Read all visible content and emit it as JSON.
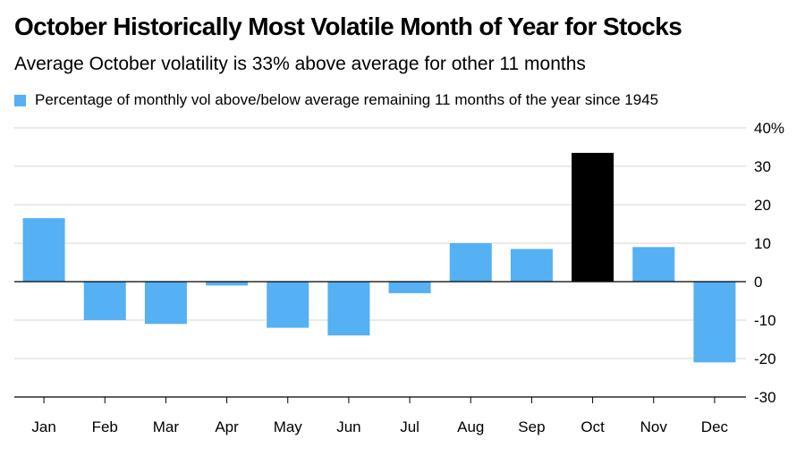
{
  "chart_data": {
    "type": "bar",
    "title": "October Historically Most Volatile Month of Year for Stocks",
    "subtitle": "Average October volatility is 33% above average for other 11 months",
    "legend": {
      "label": "Percentage of monthly vol above/below average remaining 11 months of the year since 1945",
      "placement": "top-left"
    },
    "categories": [
      "Jan",
      "Feb",
      "Mar",
      "Apr",
      "May",
      "Jun",
      "Jul",
      "Aug",
      "Sep",
      "Oct",
      "Nov",
      "Dec"
    ],
    "values": [
      16.5,
      -10,
      -11,
      -1,
      -12,
      -14,
      -3,
      10,
      8.5,
      33.5,
      9,
      -21
    ],
    "highlight_category": "Oct",
    "ylim": [
      -30,
      40
    ],
    "yticks": [
      40,
      30,
      20,
      10,
      0,
      -10,
      -20,
      -30
    ],
    "ytick_labels": [
      "40%",
      "30",
      "20",
      "10",
      "0",
      "-10",
      "-20",
      "-30"
    ],
    "yaxis_side": "right",
    "grid": true,
    "xlabel": "",
    "ylabel": ""
  },
  "colors": {
    "bar": "#55b0f4",
    "highlight": "#000000",
    "grid": "#d4d4d4",
    "zero_line": "#000000",
    "axis": "#000000"
  }
}
